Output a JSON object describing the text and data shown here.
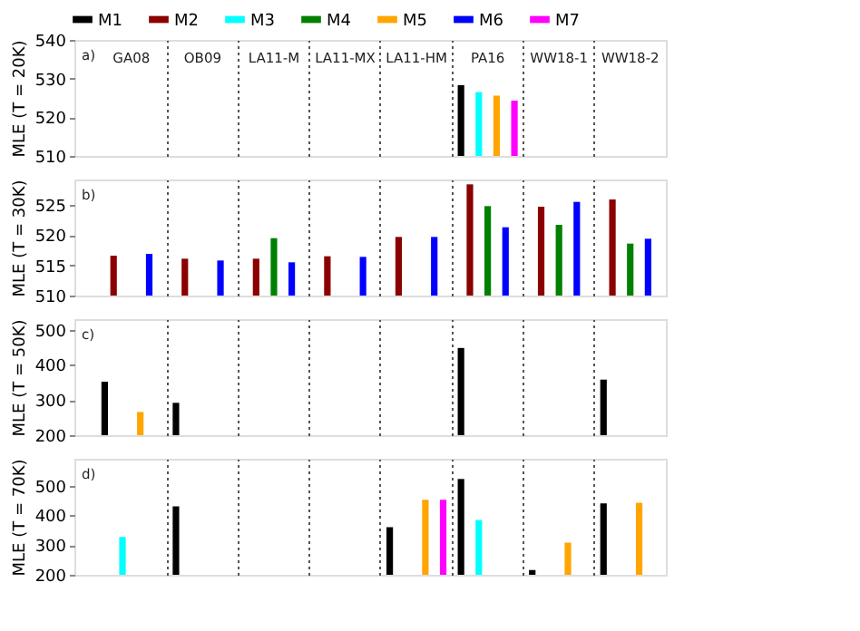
{
  "chart_data": [
    {
      "type": "bar",
      "categories": [
        "GA08",
        "OB09",
        "LA11-M",
        "LA11-MX",
        "LA11-HM",
        "PA16",
        "WW18-1",
        "WW18-2"
      ],
      "ylabel": "MLE (T = 20K)",
      "annotations": [
        "a)"
      ],
      "ylim": [
        510,
        540
      ],
      "yticks": [
        510,
        520,
        530,
        540
      ],
      "grid": "x",
      "legend": "top",
      "series": [
        {
          "name": "M1",
          "color": "#000000",
          "values": [
            null,
            null,
            null,
            null,
            null,
            528.3,
            null,
            null
          ]
        },
        {
          "name": "M2",
          "color": "#8b0000",
          "values": [
            null,
            null,
            null,
            null,
            null,
            null,
            null,
            null
          ]
        },
        {
          "name": "M3",
          "color": "#00ffff",
          "values": [
            null,
            null,
            null,
            null,
            null,
            526.5,
            null,
            null
          ]
        },
        {
          "name": "M4",
          "color": "#008000",
          "values": [
            null,
            null,
            null,
            null,
            null,
            null,
            null,
            null
          ]
        },
        {
          "name": "M5",
          "color": "#ffa500",
          "values": [
            null,
            null,
            null,
            null,
            null,
            525.6,
            null,
            null
          ]
        },
        {
          "name": "M6",
          "color": "#0000ff",
          "values": [
            null,
            null,
            null,
            null,
            null,
            null,
            null,
            null
          ]
        },
        {
          "name": "M7",
          "color": "#ff00ff",
          "values": [
            null,
            null,
            null,
            null,
            null,
            524.3,
            null,
            null
          ]
        }
      ]
    },
    {
      "type": "bar",
      "categories": [
        null,
        null,
        null,
        null,
        null,
        null,
        null,
        null
      ],
      "ylabel": "MLE (T = 30K)",
      "annotations": [
        "b)"
      ],
      "ylim": [
        510,
        529.2
      ],
      "yticks": [
        510,
        515,
        520,
        525
      ],
      "grid": "x",
      "tick_labels": "y",
      "series": [
        {
          "color": "#000000",
          "values": [
            null,
            null,
            null,
            null,
            null,
            null,
            null,
            null
          ]
        },
        {
          "color": "#8b0000",
          "values": [
            516.6,
            516.1,
            516.1,
            516.5,
            519.7,
            528.4,
            524.7,
            525.9
          ]
        },
        {
          "color": "#00ffff",
          "values": [
            null,
            null,
            null,
            null,
            null,
            null,
            null,
            null
          ]
        },
        {
          "color": "#008000",
          "values": [
            null,
            null,
            519.5,
            null,
            null,
            524.8,
            521.7,
            518.6
          ]
        },
        {
          "color": "#ffa500",
          "values": [
            null,
            null,
            null,
            null,
            null,
            null,
            null,
            null
          ]
        },
        {
          "color": "#0000ff",
          "values": [
            516.9,
            515.8,
            515.5,
            516.4,
            519.7,
            521.3,
            525.5,
            519.4
          ]
        },
        {
          "color": "#ff00ff",
          "values": [
            null,
            null,
            null,
            null,
            null,
            null,
            null,
            null
          ]
        }
      ]
    },
    {
      "type": "bar",
      "categories": [
        null,
        null,
        null,
        null,
        null,
        null,
        null,
        null
      ],
      "ylabel": "MLE (T = 50K)",
      "annotations": [
        "c)"
      ],
      "ylim": [
        200,
        530
      ],
      "yticks": [
        200,
        300,
        400,
        500
      ],
      "grid": "x",
      "tick_labels": "y",
      "series": [
        {
          "color": "#000000",
          "values": [
            352,
            292,
            null,
            null,
            null,
            448,
            null,
            358
          ]
        },
        {
          "color": "#8b0000",
          "values": [
            null,
            null,
            null,
            null,
            null,
            null,
            null,
            null
          ]
        },
        {
          "color": "#00ffff",
          "values": [
            null,
            null,
            null,
            null,
            null,
            null,
            null,
            null
          ]
        },
        {
          "color": "#008000",
          "values": [
            null,
            null,
            null,
            null,
            null,
            null,
            null,
            null
          ]
        },
        {
          "color": "#ffa500",
          "values": [
            266,
            null,
            null,
            null,
            null,
            null,
            null,
            null
          ]
        },
        {
          "color": "#0000ff",
          "values": [
            null,
            null,
            null,
            null,
            null,
            null,
            null,
            null
          ]
        },
        {
          "color": "#ff00ff",
          "values": [
            null,
            null,
            null,
            null,
            null,
            null,
            null,
            null
          ]
        }
      ]
    },
    {
      "type": "bar",
      "categories": [
        null,
        null,
        null,
        null,
        null,
        null,
        null,
        null
      ],
      "ylabel": "MLE (T = 70K)",
      "annotations": [
        "d)"
      ],
      "ylim": [
        200,
        590
      ],
      "yticks": [
        200,
        300,
        400,
        500
      ],
      "grid": "x",
      "tick_labels": "y",
      "series": [
        {
          "color": "#000000",
          "values": [
            null,
            430,
            null,
            null,
            360,
            522,
            216,
            440
          ]
        },
        {
          "color": "#8b0000",
          "values": [
            null,
            null,
            null,
            null,
            null,
            null,
            null,
            null
          ]
        },
        {
          "color": "#00ffff",
          "values": [
            327,
            null,
            null,
            null,
            null,
            384,
            null,
            null
          ]
        },
        {
          "color": "#008000",
          "values": [
            null,
            null,
            null,
            null,
            null,
            null,
            null,
            null
          ]
        },
        {
          "color": "#ffa500",
          "values": [
            null,
            null,
            null,
            null,
            452,
            null,
            308,
            442
          ]
        },
        {
          "color": "#0000ff",
          "values": [
            null,
            null,
            null,
            null,
            null,
            null,
            null,
            null
          ]
        },
        {
          "color": "#ff00ff",
          "values": [
            null,
            null,
            null,
            null,
            452,
            null,
            null,
            null
          ]
        }
      ]
    }
  ]
}
